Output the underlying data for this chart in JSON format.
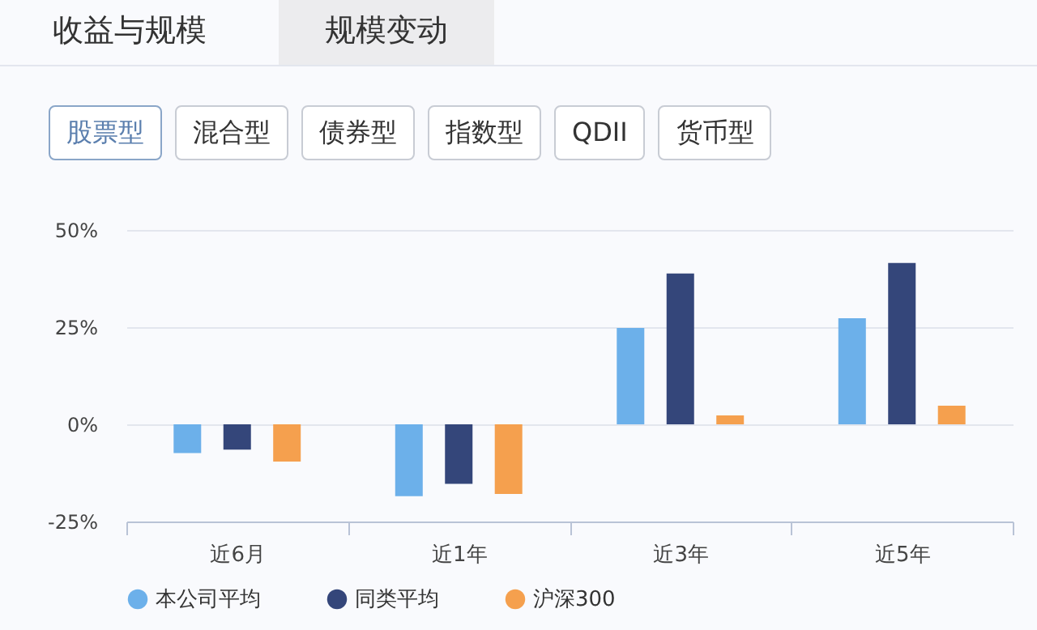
{
  "chart_data": {
    "type": "bar",
    "categories": [
      "近6月",
      "近1年",
      "近3年",
      "近5年"
    ],
    "series": [
      {
        "name": "本公司平均",
        "color": "#6cb0ea",
        "values": [
          -7.4,
          -18.5,
          24.8,
          27.3
        ]
      },
      {
        "name": "同类平均",
        "color": "#34467a",
        "values": [
          -6.5,
          -15.3,
          38.8,
          41.5
        ]
      },
      {
        "name": "沪深300",
        "color": "#f5a04e",
        "values": [
          -9.6,
          -17.9,
          2.3,
          4.8
        ]
      }
    ],
    "ylim": [
      -25,
      50
    ],
    "yticks": [
      {
        "value": -25,
        "label": "-25%"
      },
      {
        "value": 0,
        "label": "0%"
      },
      {
        "value": 25,
        "label": "25%"
      },
      {
        "value": 50,
        "label": "50%"
      }
    ],
    "grid": "y",
    "legend": "bottom",
    "annotations": [
      "收益与规模",
      "规模变动",
      "股票型",
      "混合型",
      "债券型",
      "指数型",
      "QDII",
      "货币型"
    ]
  }
}
